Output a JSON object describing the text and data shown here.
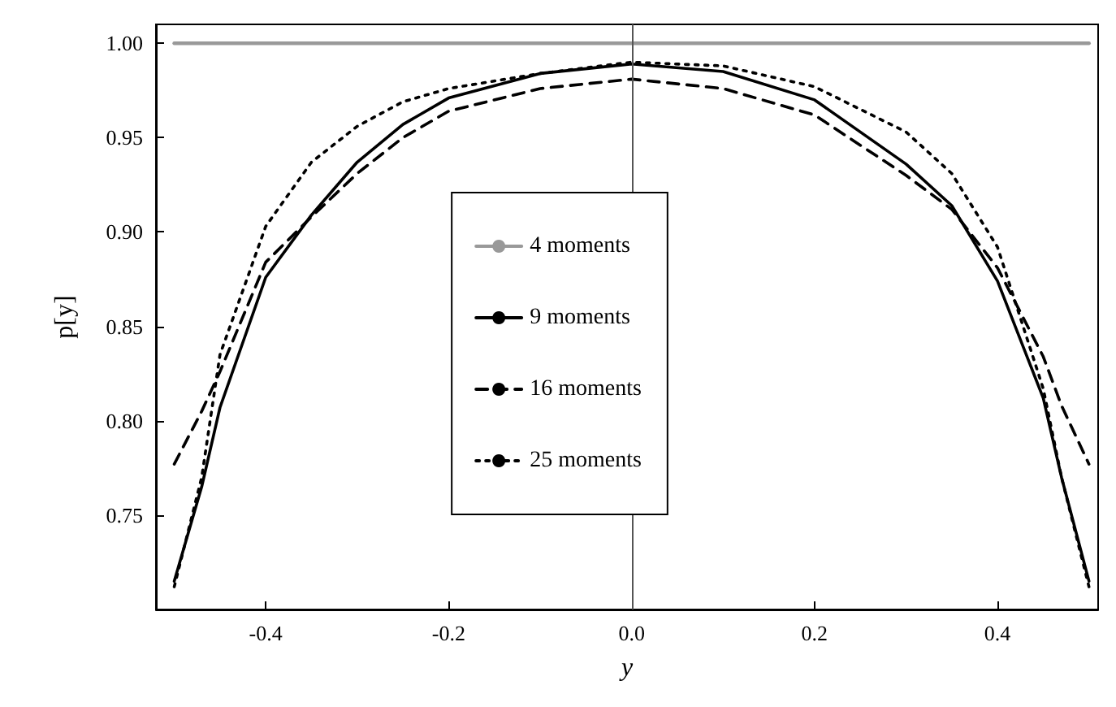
{
  "chart_data": {
    "type": "line",
    "xlabel": "y",
    "ylabel": "p[y]",
    "x": [
      -0.5,
      -0.47,
      -0.45,
      -0.4,
      -0.35,
      -0.3,
      -0.25,
      -0.2,
      -0.1,
      0,
      0.1,
      0.2,
      0.3,
      0.35,
      0.4,
      0.45,
      0.47,
      0.5
    ],
    "series": [
      {
        "name": "4 moments",
        "color": "#999999",
        "line_style": "solid",
        "values": [
          1,
          1,
          1,
          1,
          1,
          1,
          1,
          1,
          1,
          1,
          1,
          1,
          1,
          1,
          1,
          1,
          1,
          1
        ]
      },
      {
        "name": "9 moments",
        "color": "#000000",
        "line_style": "solid",
        "values": [
          0.715,
          0.765,
          0.807,
          0.876,
          0.909,
          0.937,
          0.957,
          0.971,
          0.984,
          0.989,
          0.985,
          0.97,
          0.936,
          0.914,
          0.874,
          0.812,
          0.77,
          0.715
        ]
      },
      {
        "name": "16 moments",
        "color": "#000000",
        "line_style": "dashed",
        "values": [
          0.777,
          0.805,
          0.826,
          0.884,
          0.908,
          0.931,
          0.95,
          0.964,
          0.976,
          0.981,
          0.976,
          0.962,
          0.93,
          0.912,
          0.881,
          0.834,
          0.808,
          0.777
        ]
      },
      {
        "name": "25 moments",
        "color": "#000000",
        "line_style": "dotted",
        "values": [
          0.712,
          0.77,
          0.835,
          0.903,
          0.937,
          0.956,
          0.969,
          0.976,
          0.984,
          0.99,
          0.988,
          0.977,
          0.953,
          0.931,
          0.892,
          0.817,
          0.77,
          0.712
        ]
      }
    ],
    "xlim": [
      -0.52,
      0.51
    ],
    "ylim": [
      0.7,
      1.01
    ],
    "xticks": [
      -0.4,
      -0.2,
      {
        "value": 0,
        "label": "0.0"
      },
      0.2,
      0.4
    ],
    "yticks": [
      0.75,
      {
        "value": 0.8,
        "label": "0.80"
      },
      0.85,
      {
        "value": 0.9,
        "label": "0.90"
      },
      0.95,
      {
        "value": 1,
        "label": "1.00"
      }
    ],
    "ref_lines": [
      {
        "axis": "x",
        "value": 0,
        "color": "#555555"
      }
    ],
    "grid": false,
    "legend": "center",
    "marker": "none"
  }
}
